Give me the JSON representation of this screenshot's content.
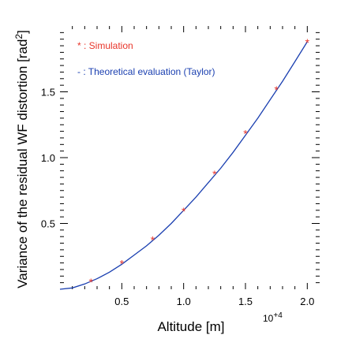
{
  "chart_data": {
    "type": "line",
    "title": "",
    "xlabel": "Altitude [m]",
    "ylabel": "Variance of the residual WF distortion [rad",
    "ylabel_superscript": "2",
    "ylabel_close": "]",
    "x_multiplier_base": "10",
    "x_multiplier_exponent": "+4",
    "xlim": [
      0,
      2.1
    ],
    "ylim": [
      0,
      2.0
    ],
    "x_ticks": [
      0.5,
      1.0,
      1.5,
      2.0
    ],
    "x_tick_labels": [
      "0.5",
      "1.0",
      "1.5",
      "2.0"
    ],
    "y_ticks": [
      0.5,
      1.0,
      1.5
    ],
    "y_tick_labels": [
      "0.5",
      "1.0",
      "1.5"
    ],
    "grid": false,
    "legend_position": "top-left",
    "series": [
      {
        "name": "Simulation",
        "legend_text": "* : Simulation",
        "marker": "*",
        "color": "#e8352a",
        "x": [
          0.25,
          0.5,
          0.75,
          1.0,
          1.25,
          1.5,
          1.75,
          2.0
        ],
        "y": [
          0.06,
          0.2,
          0.38,
          0.6,
          0.88,
          1.19,
          1.52,
          1.88
        ]
      },
      {
        "name": "Theoretical evaluation (Taylor)",
        "legend_text": "- : Theoretical evaluation (Taylor)",
        "marker": "line",
        "color": "#1a3fb0",
        "x": [
          0.0,
          0.1,
          0.2,
          0.3,
          0.4,
          0.5,
          0.6,
          0.7,
          0.8,
          0.9,
          1.0,
          1.1,
          1.2,
          1.3,
          1.4,
          1.5,
          1.6,
          1.7,
          1.8,
          1.9,
          2.0,
          2.1
        ],
        "y": [
          0.0,
          0.01,
          0.04,
          0.08,
          0.13,
          0.19,
          0.26,
          0.33,
          0.41,
          0.5,
          0.6,
          0.7,
          0.81,
          0.92,
          1.04,
          1.17,
          1.3,
          1.44,
          1.58,
          1.73,
          1.88,
          2.03
        ]
      }
    ]
  }
}
